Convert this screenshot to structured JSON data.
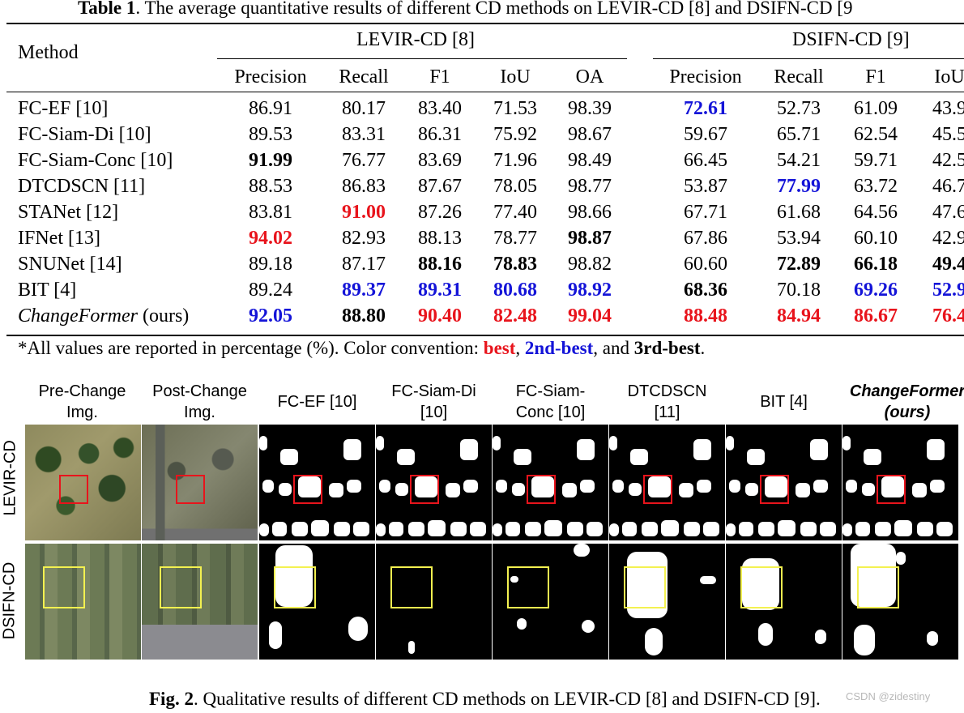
{
  "table": {
    "caption_label": "Table 1",
    "caption_text": ". The average quantitative results of different CD methods on LEVIR-CD [8] and DSIFN-CD [9",
    "method_header": "Method",
    "dataset1": "LEVIR-CD [8]",
    "dataset2": "DSIFN-CD [9]",
    "metrics1": [
      "Precision",
      "Recall",
      "F1",
      "IoU",
      "OA"
    ],
    "metrics2": [
      "Precision",
      "Recall",
      "F1",
      "IoU"
    ],
    "rows": [
      {
        "method": "FC-EF [10]",
        "levir": [
          "86.91",
          "80.17",
          "83.40",
          "71.53",
          "98.39"
        ],
        "dsifn": [
          "72.61",
          "52.73",
          "61.09",
          "43.9"
        ]
      },
      {
        "method": "FC-Siam-Di [10]",
        "levir": [
          "89.53",
          "83.31",
          "86.31",
          "75.92",
          "98.67"
        ],
        "dsifn": [
          "59.67",
          "65.71",
          "62.54",
          "45.5"
        ]
      },
      {
        "method": "FC-Siam-Conc [10]",
        "levir": [
          "91.99",
          "76.77",
          "83.69",
          "71.96",
          "98.49"
        ],
        "dsifn": [
          "66.45",
          "54.21",
          "59.71",
          "42.5"
        ]
      },
      {
        "method": "DTCDSCN [11]",
        "levir": [
          "88.53",
          "86.83",
          "87.67",
          "78.05",
          "98.77"
        ],
        "dsifn": [
          "53.87",
          "77.99",
          "63.72",
          "46.7"
        ]
      },
      {
        "method": "STANet [12]",
        "levir": [
          "83.81",
          "91.00",
          "87.26",
          "77.40",
          "98.66"
        ],
        "dsifn": [
          "67.71",
          "61.68",
          "64.56",
          "47.6"
        ]
      },
      {
        "method": "IFNet [13]",
        "levir": [
          "94.02",
          "82.93",
          "88.13",
          "78.77",
          "98.87"
        ],
        "dsifn": [
          "67.86",
          "53.94",
          "60.10",
          "42.9"
        ]
      },
      {
        "method": "SNUNet [14]",
        "levir": [
          "89.18",
          "87.17",
          "88.16",
          "78.83",
          "98.82"
        ],
        "dsifn": [
          "60.60",
          "72.89",
          "66.18",
          "49.4"
        ]
      },
      {
        "method": "BIT [4]",
        "levir": [
          "89.24",
          "89.37",
          "89.31",
          "80.68",
          "98.92"
        ],
        "dsifn": [
          "68.36",
          "70.18",
          "69.26",
          "52.9"
        ]
      },
      {
        "method_italic": "ChangeFormer",
        "method_suffix": " (ours)",
        "levir": [
          "92.05",
          "88.80",
          "90.40",
          "82.48",
          "99.04"
        ],
        "dsifn": [
          "88.48",
          "84.94",
          "86.67",
          "76.4"
        ]
      }
    ],
    "styles": {
      "levir": [
        [
          "",
          "",
          "",
          "",
          ""
        ],
        [
          "",
          "",
          "",
          "",
          ""
        ],
        [
          "c3",
          "",
          "",
          "",
          ""
        ],
        [
          "",
          "",
          "",
          "",
          ""
        ],
        [
          "",
          "c1",
          "",
          "",
          ""
        ],
        [
          "c1",
          "",
          "",
          "",
          "c3"
        ],
        [
          "",
          "",
          "c3",
          "c3",
          ""
        ],
        [
          "",
          "c2",
          "c2",
          "c2",
          "c2"
        ],
        [
          "c2",
          "c3",
          "c1",
          "c1",
          "c1"
        ]
      ],
      "dsifn": [
        [
          "c2",
          "",
          "",
          ""
        ],
        [
          "",
          "",
          "",
          ""
        ],
        [
          "",
          "",
          "",
          ""
        ],
        [
          "",
          "c2",
          "",
          ""
        ],
        [
          "",
          "",
          "",
          ""
        ],
        [
          "",
          "",
          "",
          ""
        ],
        [
          "",
          "c3",
          "c3",
          "c3"
        ],
        [
          "c3",
          "",
          "c2",
          "c2"
        ],
        [
          "c1",
          "c1",
          "c1",
          "c1"
        ]
      ]
    },
    "note_prefix": "*All values are reported in percentage (%). Color convention: ",
    "note_best": "best",
    "note_sep1": ", ",
    "note_second": "2nd-best",
    "note_sep2": ", and ",
    "note_third": "3rd-best",
    "note_end": ".",
    "colors": {
      "best": "#e8141c",
      "second": "#1414d8",
      "third": "#000000"
    }
  },
  "figure": {
    "column_headers": [
      "Pre-Change Img.",
      "Post-Change Img.",
      "FC-EF [10]",
      "FC-Siam-Di [10]",
      "FC-Siam-Conc [10]",
      "DTCDSCN [11]",
      "BIT [4]",
      "ChangeFormer (ours)"
    ],
    "row_labels": [
      "LEVIR-CD",
      "DSIFN-CD"
    ],
    "caption_label": "Fig. 2",
    "caption_text": ". Qualitative results of different CD methods on LEVIR-CD [8] and DSIFN-CD [9].",
    "box_colors": {
      "levir": "#e8141c",
      "dsifn": "#f3f150"
    }
  },
  "watermark": "CSDN @zidestiny"
}
